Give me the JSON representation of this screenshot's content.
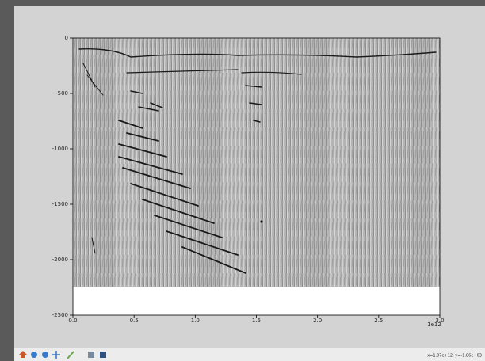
{
  "plot": {
    "xlim": [
      0,
      3
    ],
    "xticks": [
      {
        "value": 0,
        "label": "0.0"
      },
      0.5,
      {
        "value": 1,
        "label": "1.0"
      },
      1.5,
      {
        "value": 2,
        "label": "2.0"
      },
      2.5,
      {
        "value": 3,
        "label": "3.0"
      }
    ],
    "x_offset_label": "1e12",
    "ylim": [
      -2500,
      0
    ],
    "yticks": [
      0,
      -500,
      -1000,
      -1500,
      -2000,
      -2500
    ]
  },
  "status_bar": {
    "coordinates": "x=1.07e+12, y=-1.86e+03"
  }
}
